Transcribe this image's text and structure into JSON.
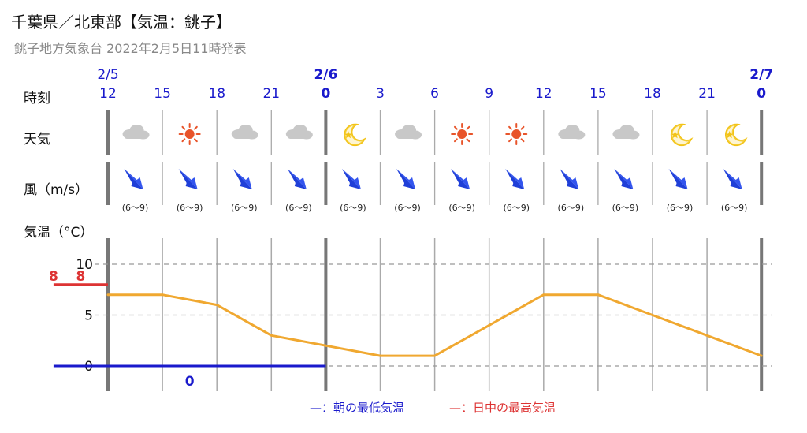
{
  "header": {
    "title": "千葉県／北東部【気温：銚子】",
    "subtitle": "銚子地方気象台 2022年2月5日11時発表"
  },
  "rows": {
    "time_label": "時刻",
    "weather_label": "天気",
    "wind_label": "風（m/s）",
    "temp_label": "気温（°C）"
  },
  "columns": [
    {
      "date": "2/5",
      "hour": "12",
      "weather": "cloudy",
      "weather_icon": "cloud-icon",
      "wind_dir": "NW",
      "wind": "(6～9)"
    },
    {
      "date": "",
      "hour": "15",
      "weather": "sunny",
      "weather_icon": "sun-icon",
      "wind_dir": "NW",
      "wind": "(6～9)"
    },
    {
      "date": "",
      "hour": "18",
      "weather": "cloudy",
      "weather_icon": "cloud-icon",
      "wind_dir": "NW",
      "wind": "(6～9)"
    },
    {
      "date": "",
      "hour": "21",
      "weather": "cloudy",
      "weather_icon": "cloud-icon",
      "wind_dir": "NW",
      "wind": "(6～9)"
    },
    {
      "date": "2/6",
      "hour": "0",
      "weather": "clear-night",
      "weather_icon": "moon-icon",
      "wind_dir": "NW",
      "wind": "(6～9)"
    },
    {
      "date": "",
      "hour": "3",
      "weather": "cloudy",
      "weather_icon": "cloud-icon",
      "wind_dir": "NW",
      "wind": "(6～9)"
    },
    {
      "date": "",
      "hour": "6",
      "weather": "sunny",
      "weather_icon": "sun-icon",
      "wind_dir": "NW",
      "wind": "(6～9)"
    },
    {
      "date": "",
      "hour": "9",
      "weather": "sunny",
      "weather_icon": "sun-icon",
      "wind_dir": "NW",
      "wind": "(6～9)"
    },
    {
      "date": "",
      "hour": "12",
      "weather": "cloudy",
      "weather_icon": "cloud-icon",
      "wind_dir": "NW",
      "wind": "(6～9)"
    },
    {
      "date": "",
      "hour": "15",
      "weather": "cloudy",
      "weather_icon": "cloud-icon",
      "wind_dir": "NW",
      "wind": "(6～9)"
    },
    {
      "date": "",
      "hour": "18",
      "weather": "clear-night",
      "weather_icon": "moon-icon",
      "wind_dir": "NW",
      "wind": "(6～9)"
    },
    {
      "date": "",
      "hour": "21",
      "weather": "clear-night",
      "weather_icon": "moon-icon",
      "wind_dir": "NW",
      "wind": "(6～9)"
    },
    {
      "date": "2/7",
      "hour": "0",
      "weather": "",
      "weather_icon": "",
      "wind_dir": "",
      "wind": ""
    }
  ],
  "colors": {
    "date_bold": "#1a1acc",
    "hour": "#1a1acc",
    "temp_line": "#f0a830",
    "max_temp": "#dd3333",
    "min_temp": "#1a1acc",
    "grid": "#999999",
    "cloud": "#c8c8c8",
    "sun": "#e8542a",
    "moon": "#f2c316",
    "wind_arrow": "#1f3fd8"
  },
  "chart_data": {
    "type": "line",
    "x": [
      "2/5 12",
      "15",
      "18",
      "21",
      "2/6 0",
      "3",
      "6",
      "9",
      "12",
      "15",
      "18",
      "21",
      "2/7 0"
    ],
    "series": [
      {
        "values": [
          7,
          7,
          6,
          3,
          2,
          1,
          1,
          4,
          7,
          7,
          5,
          3,
          1
        ]
      }
    ],
    "max_temp": [
      {
        "from": "2/5 12",
        "to": "2/5 18",
        "value": 8,
        "label": "8"
      },
      {
        "from": "2/6 9",
        "to": "2/6 18",
        "value": 8,
        "label": "8"
      }
    ],
    "min_temp": [
      {
        "from": "2/6 0",
        "to": "2/6 9",
        "value": 0,
        "label": "0"
      }
    ],
    "y_ticks": [
      0,
      5,
      10
    ],
    "ylim": [
      -2.5,
      11
    ],
    "grid": true,
    "legend": [
      {
        "key": "min",
        "label": "—：朝の最低気温"
      },
      {
        "key": "max",
        "label": "—：日中の最高気温"
      }
    ],
    "legend_position": "bottom-center"
  }
}
